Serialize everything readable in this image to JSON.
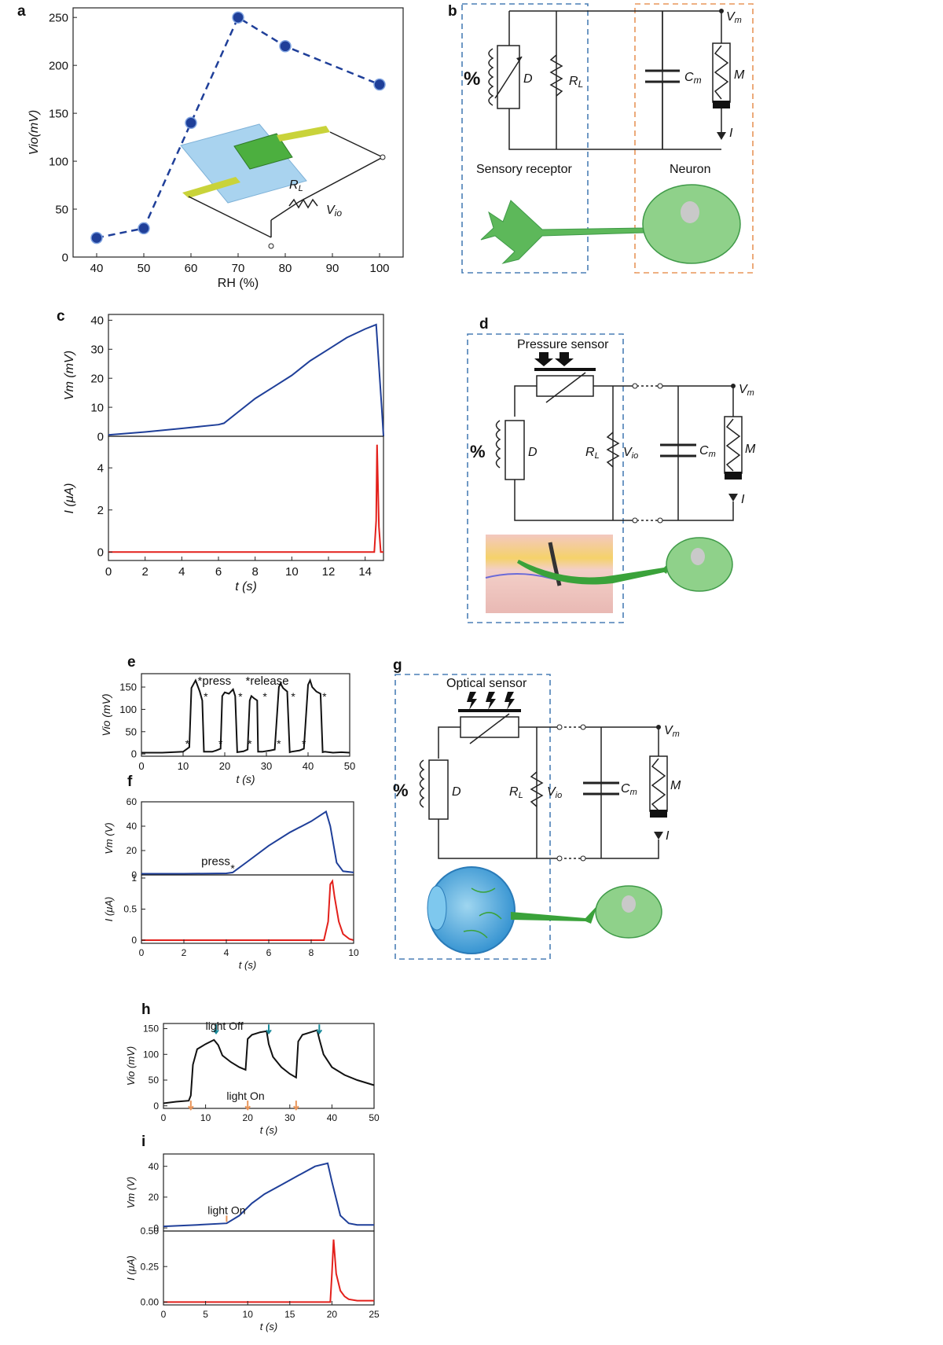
{
  "panels": {
    "a": {
      "label": "a"
    },
    "b": {
      "label": "b"
    },
    "c": {
      "label": "c"
    },
    "d": {
      "label": "d"
    },
    "e": {
      "label": "e"
    },
    "f": {
      "label": "f"
    },
    "g": {
      "label": "g"
    },
    "h": {
      "label": "h"
    },
    "i": {
      "label": "i"
    }
  },
  "circuits": {
    "b": {
      "sensory_label": "Sensory receptor",
      "neuron_label": "Neuron",
      "percent": "%",
      "D": "D",
      "RL": "R",
      "RL_sub": "L",
      "Cm": "C",
      "Cm_sub": "m",
      "M": "M",
      "I": "I",
      "Vm": "V",
      "Vm_sub": "m"
    },
    "d": {
      "sensor_label": "Pressure sensor",
      "percent": "%",
      "D": "D",
      "RL": "R",
      "RL_sub": "L",
      "Vio": "V",
      "Vio_sub": "io",
      "Cm": "C",
      "Cm_sub": "m",
      "M": "M",
      "I": "I",
      "Vm": "V",
      "Vm_sub": "m"
    },
    "g": {
      "sensor_label": "Optical sensor",
      "percent": "%",
      "D": "D",
      "RL": "R",
      "RL_sub": "L",
      "Vio": "V",
      "Vio_sub": "io",
      "Cm": "C",
      "Cm_sub": "m",
      "M": "M",
      "I": "I",
      "Vm": "V",
      "Vm_sub": "m"
    }
  },
  "colors": {
    "blue": "#1f3f99",
    "red": "#e3201b",
    "black": "#111111",
    "orange": "#e8955a",
    "teal": "#1a8a9a"
  },
  "chart_data": [
    {
      "id": "a",
      "type": "line",
      "x": [
        40,
        50,
        60,
        70,
        80,
        100
      ],
      "y": [
        20,
        30,
        140,
        250,
        220,
        180
      ],
      "xlabel": "RH (%)",
      "ylabel": "Vio(mV)",
      "xlim": [
        35,
        105
      ],
      "ylim": [
        0,
        260
      ],
      "xticks": [
        40,
        50,
        60,
        70,
        80,
        90,
        100
      ],
      "yticks": [
        0,
        50,
        100,
        150,
        200,
        250
      ],
      "inset": {
        "RL": "R",
        "RL_sub": "L",
        "Vio": "V",
        "Vio_sub": "io"
      }
    },
    {
      "id": "c_top",
      "type": "line",
      "ylabel": "Vm (mV)",
      "xlim": [
        0,
        15
      ],
      "ylim": [
        0,
        42
      ],
      "yticks": [
        0,
        10,
        20,
        30,
        40
      ],
      "x": [
        0,
        2,
        4,
        6,
        6.3,
        7,
        8,
        9,
        10,
        11,
        12,
        13,
        14,
        14.6,
        14.9,
        15
      ],
      "y": [
        0.5,
        1.5,
        2.7,
        4.0,
        4.5,
        8,
        13,
        17,
        21,
        26,
        30,
        34,
        37,
        38.5,
        10,
        0
      ]
    },
    {
      "id": "c_bottom",
      "type": "line",
      "xlabel": "t (s)",
      "ylabel": "I (μA)",
      "xlim": [
        0,
        15
      ],
      "ylim": [
        -0.4,
        5.5
      ],
      "xticks": [
        0,
        2,
        4,
        6,
        8,
        10,
        12,
        14
      ],
      "yticks": [
        0,
        2,
        4
      ],
      "x": [
        0,
        14.5,
        14.6,
        14.65,
        14.75,
        14.85,
        15
      ],
      "y": [
        0,
        0,
        1.5,
        5.1,
        1.2,
        0,
        0
      ]
    },
    {
      "id": "e",
      "type": "line",
      "xlabel": "t (s)",
      "ylabel": "Vio (mV)",
      "xlim": [
        0,
        50
      ],
      "ylim": [
        -5,
        180
      ],
      "xticks": [
        0,
        10,
        20,
        30,
        40,
        50
      ],
      "yticks": [
        0,
        50,
        100,
        150
      ],
      "x": [
        0,
        5,
        10,
        11,
        11.5,
        12,
        13,
        14,
        14.6,
        15,
        17,
        18,
        19,
        19.4,
        20,
        21,
        22,
        22.5,
        23,
        24.5,
        25.5,
        26,
        26.4,
        27,
        27.8,
        28,
        29,
        31,
        32,
        33,
        33.4,
        34,
        35,
        35.6,
        36,
        38,
        39,
        40,
        40.5,
        41,
        42,
        43,
        43.5,
        44,
        46,
        48,
        50
      ],
      "y": [
        3,
        3,
        5,
        12,
        15,
        148,
        165,
        140,
        120,
        5,
        5,
        8,
        12,
        130,
        138,
        135,
        145,
        130,
        4,
        6,
        10,
        120,
        130,
        125,
        120,
        5,
        5,
        8,
        10,
        150,
        158,
        148,
        140,
        4,
        5,
        8,
        12,
        155,
        165,
        150,
        140,
        135,
        4,
        5,
        3,
        4,
        3
      ],
      "annotations": {
        "press": "press",
        "release": "release",
        "star": "*"
      },
      "press_at": [
        11,
        19,
        26,
        33,
        39
      ],
      "release_at": [
        14.5,
        22.8,
        28.7,
        35.5,
        43
      ]
    },
    {
      "id": "f_top",
      "type": "line",
      "ylabel": "Vm (V)",
      "xlim": [
        0,
        10
      ],
      "ylim": [
        0,
        60
      ],
      "yticks": [
        0,
        20,
        40,
        60
      ],
      "x": [
        0,
        2,
        4,
        4.3,
        5,
        6,
        7,
        8,
        8.7,
        8.9,
        9.2,
        9.5,
        10
      ],
      "y": [
        1,
        1,
        1.3,
        2,
        11,
        24,
        35,
        44,
        52,
        40,
        10,
        3,
        2
      ],
      "annotation": {
        "press": "press",
        "star": "*",
        "at": 4.3
      }
    },
    {
      "id": "f_bottom",
      "type": "line",
      "xlabel": "t (s)",
      "ylabel": "I (μA)",
      "xlim": [
        0,
        10
      ],
      "ylim": [
        -0.05,
        1.05
      ],
      "xticks": [
        0,
        2,
        4,
        6,
        8,
        10
      ],
      "yticks": [
        0.0,
        0.5,
        1.0
      ],
      "x": [
        0,
        8.6,
        8.8,
        8.9,
        9.0,
        9.1,
        9.3,
        9.5,
        9.8,
        10
      ],
      "y": [
        0,
        0,
        0.3,
        0.9,
        0.95,
        0.7,
        0.3,
        0.1,
        0.02,
        0
      ]
    },
    {
      "id": "h",
      "type": "line",
      "xlabel": "t (s)",
      "ylabel": "Vio (mV)",
      "xlim": [
        0,
        50
      ],
      "ylim": [
        -5,
        160
      ],
      "xticks": [
        0,
        10,
        20,
        30,
        40,
        50
      ],
      "yticks": [
        0,
        50,
        100,
        150
      ],
      "x": [
        0,
        3,
        6,
        6.5,
        7,
        8,
        10,
        12,
        13,
        14,
        16,
        18,
        19.5,
        20,
        21,
        23,
        24.5,
        25,
        26,
        28,
        30,
        31.5,
        32,
        33,
        35,
        36.5,
        37,
        38,
        40,
        43,
        46,
        50
      ],
      "y": [
        5,
        8,
        10,
        20,
        80,
        110,
        120,
        128,
        118,
        98,
        85,
        75,
        70,
        130,
        138,
        143,
        145,
        120,
        95,
        75,
        62,
        55,
        125,
        138,
        143,
        147,
        130,
        100,
        75,
        60,
        50,
        40
      ],
      "annotations": {
        "off": "light Off",
        "on": "light On"
      },
      "off_at": [
        12.5,
        25,
        37
      ],
      "on_at": [
        6.5,
        20,
        31.5
      ]
    },
    {
      "id": "i_top",
      "type": "line",
      "ylabel": "Vm (V)",
      "xlim": [
        0,
        25
      ],
      "ylim": [
        -2,
        48
      ],
      "yticks": [
        0,
        20,
        40
      ],
      "annotation": {
        "text": "light On",
        "at": 7.5
      },
      "x": [
        0,
        4,
        7.5,
        9,
        10.5,
        12,
        14,
        16,
        18,
        19.5,
        20,
        21,
        22,
        23,
        25
      ],
      "y": [
        1,
        2,
        3,
        8,
        16,
        22,
        28,
        34,
        40,
        42,
        30,
        8,
        3,
        2,
        2
      ]
    },
    {
      "id": "i_bottom",
      "type": "line",
      "xlabel": "t (s)",
      "ylabel": "I (μA)",
      "xlim": [
        0,
        25
      ],
      "ylim": [
        -0.02,
        0.5
      ],
      "xticks": [
        0,
        5,
        10,
        15,
        20,
        25
      ],
      "yticks": [
        0.0,
        0.25,
        0.5
      ],
      "ytick_labels": [
        "0.00",
        "0.25",
        "0.50"
      ],
      "x": [
        0,
        19.8,
        20,
        20.2,
        20.5,
        21,
        21.5,
        22,
        23,
        25
      ],
      "y": [
        0,
        0,
        0.2,
        0.44,
        0.2,
        0.08,
        0.04,
        0.02,
        0.01,
        0.01
      ]
    }
  ]
}
